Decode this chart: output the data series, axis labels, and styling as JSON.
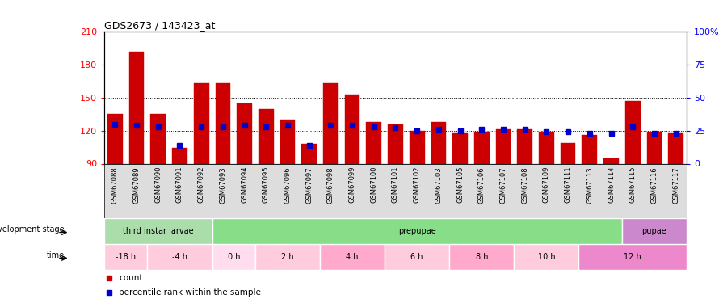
{
  "title": "GDS2673 / 143423_at",
  "samples": [
    "GSM67088",
    "GSM67089",
    "GSM67090",
    "GSM67091",
    "GSM67092",
    "GSM67093",
    "GSM67094",
    "GSM67095",
    "GSM67096",
    "GSM67097",
    "GSM67098",
    "GSM67099",
    "GSM67100",
    "GSM67101",
    "GSM67102",
    "GSM67103",
    "GSM67105",
    "GSM67106",
    "GSM67107",
    "GSM67108",
    "GSM67109",
    "GSM67111",
    "GSM67113",
    "GSM67114",
    "GSM67115",
    "GSM67116",
    "GSM67117"
  ],
  "counts": [
    135,
    192,
    135,
    104,
    163,
    163,
    145,
    140,
    130,
    108,
    163,
    153,
    128,
    126,
    120,
    128,
    118,
    119,
    121,
    121,
    119,
    109,
    116,
    95,
    147,
    119,
    118
  ],
  "percentile_ranks": [
    30,
    29,
    28,
    14,
    28,
    28,
    29,
    28,
    29,
    14,
    29,
    29,
    28,
    27,
    25,
    26,
    25,
    26,
    26,
    26,
    24,
    24,
    23,
    23,
    28,
    23,
    23
  ],
  "ymin": 90,
  "ymax": 210,
  "left_yticks": [
    90,
    120,
    150,
    180,
    210
  ],
  "right_yticks": [
    0,
    25,
    50,
    75,
    100
  ],
  "bar_color": "#cc0000",
  "square_color": "#0000cc",
  "bar_bottom": 90,
  "development_stages": [
    {
      "label": "third instar larvae",
      "start": 0,
      "end": 5,
      "color": "#aaddaa"
    },
    {
      "label": "prepupae",
      "start": 5,
      "end": 24,
      "color": "#88dd88"
    },
    {
      "label": "pupae",
      "start": 24,
      "end": 27,
      "color": "#cc88cc"
    }
  ],
  "time_periods": [
    {
      "label": "-18 h",
      "start": 0,
      "end": 2,
      "color": "#ffccdd"
    },
    {
      "label": "-4 h",
      "start": 2,
      "end": 5,
      "color": "#ffccdd"
    },
    {
      "label": "0 h",
      "start": 5,
      "end": 7,
      "color": "#ffddee"
    },
    {
      "label": "2 h",
      "start": 7,
      "end": 10,
      "color": "#ffccdd"
    },
    {
      "label": "4 h",
      "start": 10,
      "end": 13,
      "color": "#ffaacc"
    },
    {
      "label": "6 h",
      "start": 13,
      "end": 16,
      "color": "#ffccdd"
    },
    {
      "label": "8 h",
      "start": 16,
      "end": 19,
      "color": "#ffaacc"
    },
    {
      "label": "10 h",
      "start": 19,
      "end": 22,
      "color": "#ffccdd"
    },
    {
      "label": "12 h",
      "start": 22,
      "end": 27,
      "color": "#ee88cc"
    }
  ],
  "legend_count_color": "#cc0000",
  "legend_pct_color": "#0000cc",
  "xticklabel_bg": "#dddddd"
}
